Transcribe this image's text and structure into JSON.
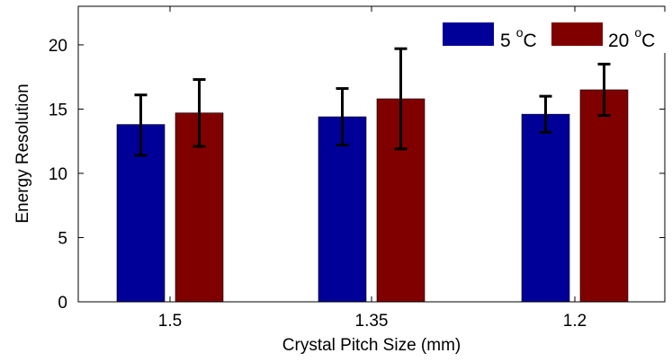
{
  "chart_data": {
    "type": "bar",
    "categories": [
      "1.5",
      "1.35",
      "1.2"
    ],
    "series": [
      {
        "name": "5 °C",
        "legend_label": "5",
        "legend_sup": "o",
        "legend_unit": "C",
        "color": "#000099",
        "values": [
          13.8,
          14.4,
          14.6
        ],
        "err_low": [
          11.4,
          12.2,
          13.2
        ],
        "err_high": [
          16.1,
          16.6,
          16.0
        ]
      },
      {
        "name": "20 °C",
        "legend_label": "20",
        "legend_sup": "o",
        "legend_unit": "C",
        "color": "#800000",
        "values": [
          14.7,
          15.8,
          16.5
        ],
        "err_low": [
          12.1,
          11.9,
          14.5
        ],
        "err_high": [
          17.3,
          19.7,
          18.5
        ]
      }
    ],
    "xlabel": "Crystal Pitch Size (mm)",
    "ylabel": "Energy Resolution",
    "ylim": [
      0,
      23
    ],
    "yticks": [
      0,
      5,
      10,
      15,
      20
    ],
    "grid": false,
    "legend_position": "top-right"
  }
}
